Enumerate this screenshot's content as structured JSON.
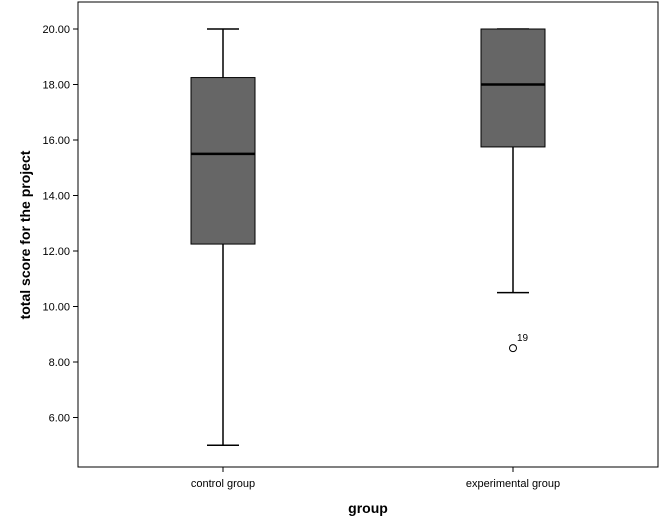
{
  "chart_data": {
    "type": "boxplot",
    "xlabel": "group",
    "ylabel": "total score for the project",
    "ylim": [
      4.3,
      20.6
    ],
    "yticks": [
      6,
      8,
      10,
      12,
      14,
      16,
      18,
      20
    ],
    "ytick_labels": [
      "6.00",
      "8.00",
      "10.00",
      "12.00",
      "14.00",
      "16.00",
      "18.00",
      "20.00"
    ],
    "grid": false,
    "box_color": "#666666",
    "categories": [
      "control group",
      "experimental group"
    ],
    "boxes": [
      {
        "category": "control group",
        "whisker_low": 5.0,
        "q1": 12.25,
        "median": 15.5,
        "q3": 18.25,
        "whisker_high": 20.0,
        "outliers": []
      },
      {
        "category": "experimental group",
        "whisker_low": 10.5,
        "q1": 15.75,
        "median": 18.0,
        "q3": 20.0,
        "whisker_high": 20.0,
        "outliers": [
          {
            "value": 8.5,
            "label": "19"
          }
        ]
      }
    ]
  }
}
